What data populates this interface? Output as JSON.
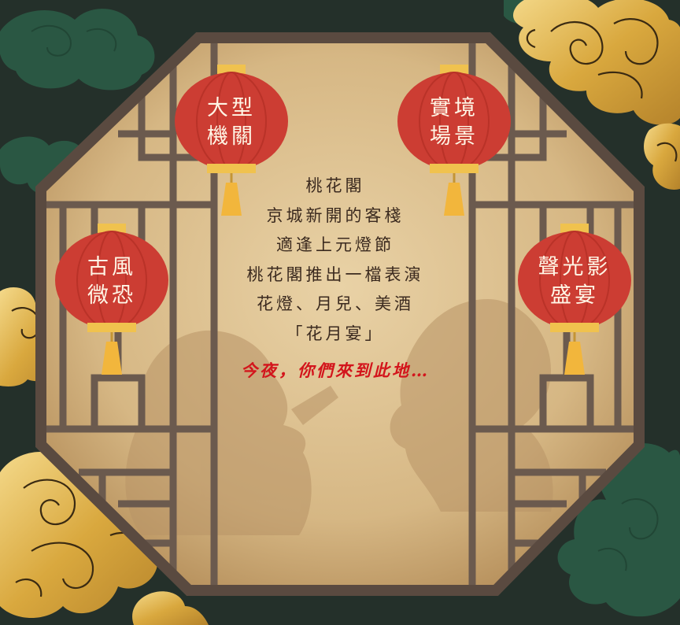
{
  "poem": {
    "lines": [
      "桃花閣",
      "京城新開的客棧",
      "適逢上元燈節",
      "桃花閣推出一檔表演",
      "花燈、月兒、美酒",
      "「花月宴」"
    ],
    "tagline": "今夜，你們來到此地…"
  },
  "lanterns": [
    {
      "line1": "大型",
      "line2": "機關"
    },
    {
      "line1": "實境",
      "line2": "場景"
    },
    {
      "line1": "古風",
      "line2": "微恐"
    },
    {
      "line1": "聲光影",
      "line2": "盛宴"
    }
  ],
  "colors": {
    "background": "#24302a",
    "frame": "#6b5a4e",
    "paper": "#d9bd8c",
    "lantern": "#cc3d33",
    "gold": "#e0b64e",
    "cloud_green": "#2b5a45",
    "tagline": "#d3151c"
  },
  "icons": [
    "cloud-icon",
    "lantern-icon",
    "tassel-icon"
  ]
}
